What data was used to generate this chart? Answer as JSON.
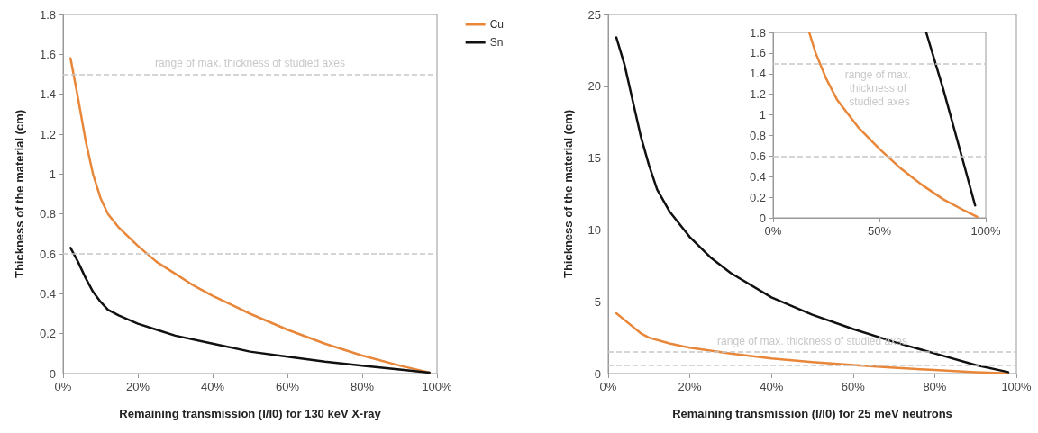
{
  "chart_data": [
    {
      "type": "line",
      "xlabel": "Remaining transmission (I/I0) for 130 keV X-ray",
      "ylabel": "Thickness of the material (cm)",
      "legend": "right",
      "marker": "none",
      "grid": false,
      "xlim": [
        0,
        100
      ],
      "xticks": [
        {
          "value": 0,
          "label": "0%"
        },
        {
          "value": 20,
          "label": "20%"
        },
        {
          "value": 40,
          "label": "40%"
        },
        {
          "value": 60,
          "label": "60%"
        },
        {
          "value": 80,
          "label": "80%"
        },
        {
          "value": 100,
          "label": "100%"
        }
      ],
      "ylim": [
        0,
        1.8
      ],
      "yticks": [
        0,
        0.2,
        0.4,
        0.6,
        0.8,
        1,
        1.2,
        1.4,
        1.6,
        1.8
      ],
      "series": [
        {
          "name": "Cu",
          "color": "#e8873a",
          "x": [
            2,
            4,
            6,
            8,
            10,
            12,
            15,
            20,
            25,
            30,
            35,
            40,
            50,
            60,
            70,
            80,
            90,
            98
          ],
          "values": [
            1.58,
            1.38,
            1.17,
            1.0,
            0.88,
            0.8,
            0.73,
            0.64,
            0.56,
            0.5,
            0.44,
            0.39,
            0.3,
            0.22,
            0.15,
            0.09,
            0.04,
            0.005
          ]
        },
        {
          "name": "Sn",
          "color": "#111111",
          "x": [
            2,
            4,
            6,
            8,
            10,
            12,
            15,
            20,
            25,
            30,
            40,
            50,
            60,
            70,
            80,
            90,
            98
          ],
          "values": [
            0.63,
            0.56,
            0.48,
            0.41,
            0.36,
            0.32,
            0.29,
            0.25,
            0.22,
            0.19,
            0.15,
            0.11,
            0.085,
            0.06,
            0.04,
            0.02,
            0.005
          ]
        }
      ],
      "ref_lines": [
        {
          "axis": "y",
          "value": 1.5,
          "label": "range of max. thickness of studied axes",
          "color": "#c8c8c8",
          "line_style": "dashed"
        },
        {
          "axis": "y",
          "value": 0.6,
          "label": null,
          "color": "#c8c8c8",
          "line_style": "dashed"
        }
      ]
    },
    {
      "type": "line",
      "xlabel": "Remaining transmission (I/I0) for 25 meV neutrons",
      "ylabel": "Thickness of the material (cm)",
      "marker": "none",
      "grid": false,
      "xlim": [
        0,
        100
      ],
      "xticks": [
        {
          "value": 0,
          "label": "0%"
        },
        {
          "value": 20,
          "label": "20%"
        },
        {
          "value": 40,
          "label": "40%"
        },
        {
          "value": 60,
          "label": "60%"
        },
        {
          "value": 80,
          "label": "80%"
        },
        {
          "value": 100,
          "label": "100%"
        }
      ],
      "ylim": [
        0,
        25
      ],
      "yticks": [
        0,
        5,
        10,
        15,
        20,
        25
      ],
      "series": [
        {
          "color": "#e8873a",
          "x": [
            2,
            5,
            8,
            10,
            15,
            20,
            30,
            40,
            50,
            60,
            70,
            80,
            90,
            98
          ],
          "values": [
            4.2,
            3.5,
            2.8,
            2.5,
            2.1,
            1.8,
            1.4,
            1.05,
            0.8,
            0.6,
            0.4,
            0.25,
            0.1,
            0.01
          ]
        },
        {
          "color": "#111111",
          "x": [
            2,
            4,
            6,
            8,
            10,
            12,
            15,
            20,
            25,
            30,
            40,
            50,
            60,
            70,
            80,
            90,
            98
          ],
          "values": [
            23.4,
            21.5,
            19,
            16.5,
            14.5,
            12.8,
            11.3,
            9.5,
            8.1,
            7,
            5.3,
            4.1,
            3.1,
            2.2,
            1.4,
            0.6,
            0.1
          ]
        }
      ],
      "ref_lines": [
        {
          "axis": "y",
          "value": 1.5,
          "label": "range of max. thickness of studied axes",
          "color": "#c8c8c8",
          "line_style": "dashed"
        },
        {
          "axis": "y",
          "value": 0.6,
          "label": null,
          "color": "#c8c8c8",
          "line_style": "dashed"
        }
      ]
    },
    {
      "type": "line",
      "marker": "none",
      "grid": false,
      "xlim": [
        0,
        100
      ],
      "xticks": [
        {
          "value": 0,
          "label": "0%"
        },
        {
          "value": 50,
          "label": "50%"
        },
        {
          "value": 100,
          "label": "100%"
        }
      ],
      "ylim": [
        0,
        1.8
      ],
      "yticks": [
        0,
        0.2,
        0.4,
        0.6,
        0.8,
        1,
        1.2,
        1.4,
        1.6,
        1.8
      ],
      "series": [
        {
          "color": "#e8873a",
          "x": [
            17,
            20,
            25,
            30,
            40,
            50,
            60,
            70,
            80,
            90,
            96
          ],
          "values": [
            1.8,
            1.6,
            1.35,
            1.15,
            0.88,
            0.67,
            0.48,
            0.32,
            0.18,
            0.07,
            0.01
          ]
        },
        {
          "color": "#111111",
          "x": [
            72,
            80,
            90,
            95
          ],
          "values": [
            1.8,
            1.25,
            0.5,
            0.12
          ]
        }
      ],
      "ref_lines": [
        {
          "axis": "y",
          "value": 1.5,
          "label": "range of max. thickness of studied axes",
          "color": "#c8c8c8",
          "line_style": "dashed"
        },
        {
          "axis": "y",
          "value": 0.6,
          "label": null,
          "color": "#c8c8c8",
          "line_style": "dashed"
        }
      ]
    }
  ]
}
